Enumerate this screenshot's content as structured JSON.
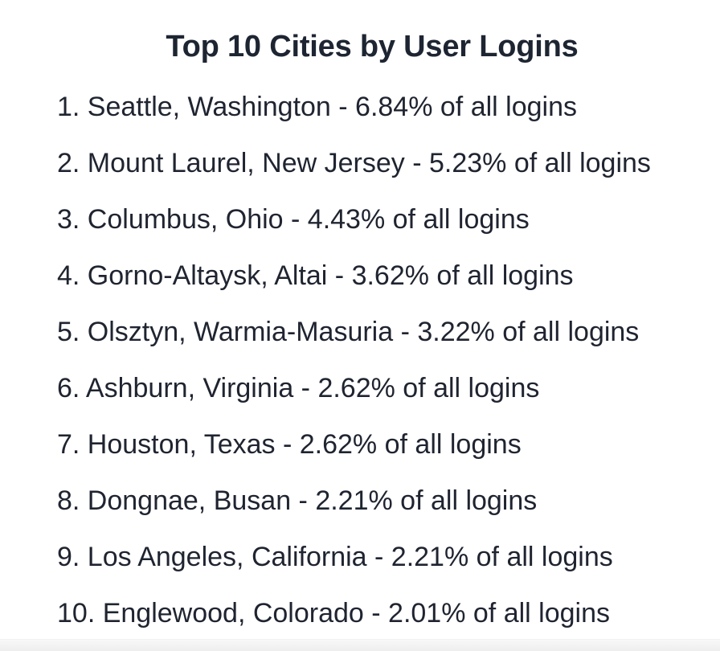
{
  "title": "Top 10 Cities by User Logins",
  "items": [
    "1. Seattle, Washington - 6.84% of all logins",
    "2. Mount Laurel, New Jersey - 5.23% of all logins",
    "3. Columbus, Ohio - 4.43% of all logins",
    "4. Gorno-Altaysk, Altai - 3.62% of all logins",
    "5. Olsztyn, Warmia-Masuria - 3.22% of all logins",
    "6. Ashburn, Virginia - 2.62% of all logins",
    "7. Houston, Texas - 2.62% of all logins",
    "8. Dongnae, Busan - 2.21% of all logins",
    "9. Los Angeles, California - 2.21% of all logins",
    "10. Englewood, Colorado - 2.01% of all logins"
  ],
  "colors": {
    "background": "#ffffff",
    "text": "#1f2430"
  }
}
